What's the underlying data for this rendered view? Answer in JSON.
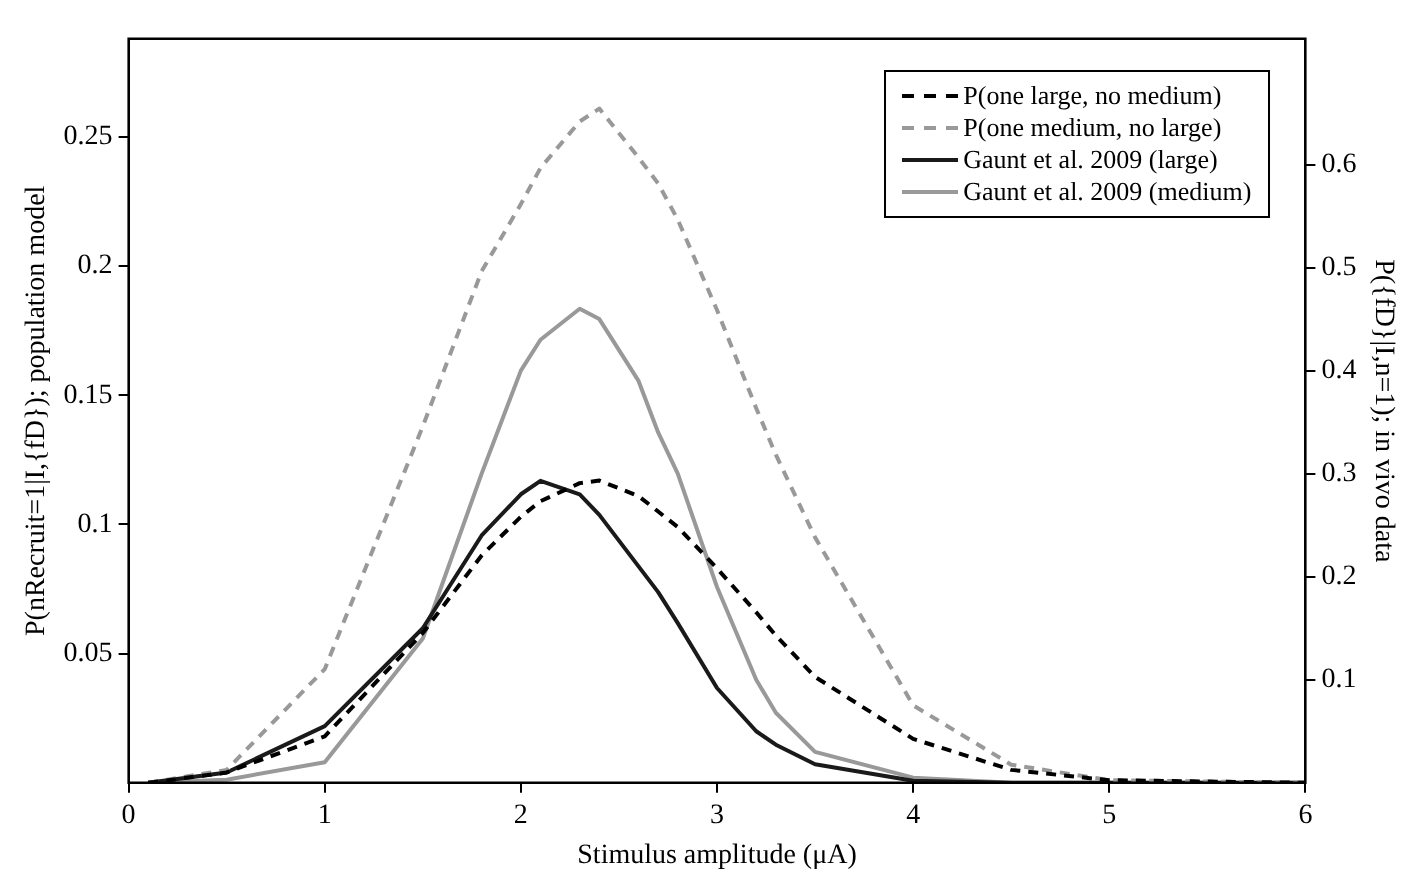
{
  "chart_data": {
    "type": "line",
    "xlabel": "Stimulus amplitude (μA)",
    "ylabel": "P(nRecruit=1|I,{fD}); population model",
    "y2label": "P({fD}|I,n=1); in vivo data",
    "x": [
      0.1,
      0.5,
      1.0,
      1.5,
      1.8,
      2.0,
      2.1,
      2.3,
      2.4,
      2.6,
      2.7,
      2.8,
      3.0,
      3.2,
      3.3,
      3.5,
      4.0,
      4.5,
      5.0,
      6.0
    ],
    "series": [
      {
        "name": "P(one large, no medium)",
        "color": "#000000",
        "line_style": "dashed",
        "values": [
          0,
          0.004,
          0.018,
          0.058,
          0.088,
          0.103,
          0.109,
          0.116,
          0.117,
          0.111,
          0.105,
          0.099,
          0.083,
          0.066,
          0.057,
          0.041,
          0.017,
          0.005,
          0.001,
          0
        ]
      },
      {
        "name": "P(one medium, no large)",
        "color": "#999999",
        "line_style": "dashed",
        "values": [
          0,
          0.005,
          0.044,
          0.138,
          0.198,
          0.224,
          0.238,
          0.256,
          0.261,
          0.242,
          0.232,
          0.218,
          0.183,
          0.145,
          0.127,
          0.095,
          0.03,
          0.007,
          0.001,
          0
        ]
      },
      {
        "name": "Gaunt et al. 2009 (large)",
        "color": "#1a1a1a",
        "line_style": "solid",
        "axis": "y2",
        "values": [
          0,
          0.01,
          0.055,
          0.15,
          0.24,
          0.28,
          0.293,
          0.28,
          0.26,
          0.21,
          0.185,
          0.155,
          0.092,
          0.05,
          0.037,
          0.018,
          0.002,
          0,
          0,
          0
        ]
      },
      {
        "name": "Gaunt et al. 2009 (medium)",
        "color": "#999999",
        "line_style": "solid",
        "axis": "y2",
        "values": [
          0,
          0.003,
          0.02,
          0.14,
          0.3,
          0.4,
          0.43,
          0.46,
          0.45,
          0.39,
          0.34,
          0.3,
          0.19,
          0.1,
          0.068,
          0.03,
          0.005,
          0,
          0,
          0
        ]
      }
    ],
    "xlim": [
      0,
      6
    ],
    "xticks": [
      0,
      1,
      2,
      3,
      4,
      5,
      6
    ],
    "ylim": [
      0,
      0.288
    ],
    "yticks": [
      0.05,
      0.1,
      0.15,
      0.2,
      0.25
    ],
    "y2lim": [
      0,
      0.722
    ],
    "y2ticks": [
      0.1,
      0.2,
      0.3,
      0.4,
      0.5,
      0.6
    ],
    "grid": false,
    "legend": "top right"
  }
}
